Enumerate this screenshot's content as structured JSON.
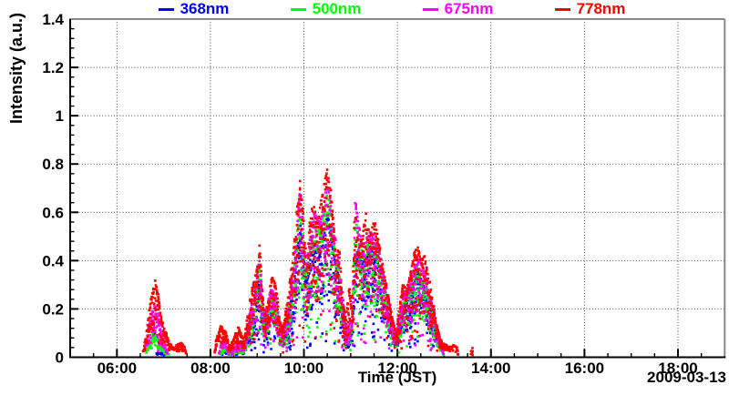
{
  "page": {
    "background": "#ffffff"
  },
  "legend": {
    "position": "top",
    "entries": [
      "368nm",
      "500nm",
      "675nm",
      "778nm"
    ]
  },
  "chart_data": {
    "type": "scatter",
    "title": "",
    "xlabel": "Time (JST)",
    "ylabel": "Intensity (a.u.)",
    "date": "2009-03-13",
    "xlim_hours": [
      5,
      19
    ],
    "ylim": [
      0,
      1.4
    ],
    "grid": "dotted",
    "legend_position": "top",
    "marker": "square",
    "marker_size_px": 3,
    "x_ticks": [
      {
        "hour": 6,
        "label": "06:00"
      },
      {
        "hour": 8,
        "label": "08:00"
      },
      {
        "hour": 10,
        "label": "10:00"
      },
      {
        "hour": 12,
        "label": "12:00"
      },
      {
        "hour": 14,
        "label": "14:00"
      },
      {
        "hour": 16,
        "label": "16:00"
      },
      {
        "hour": 18,
        "label": "18:00"
      }
    ],
    "x_minor_step_hours": 0.5,
    "y_ticks": [
      {
        "value": 1.4,
        "label": "1.4"
      },
      {
        "value": 1.2,
        "label": "1.2"
      },
      {
        "value": 1.0,
        "label": "1"
      },
      {
        "value": 0.8,
        "label": "0.8"
      },
      {
        "value": 0.6,
        "label": "0.6"
      },
      {
        "value": 0.4,
        "label": "0.4"
      },
      {
        "value": 0.2,
        "label": "0.2"
      },
      {
        "value": 0.0,
        "label": "0"
      }
    ],
    "y_minor_step": 0.04,
    "style": {
      "axis_color": "#000000",
      "frame_color": "#878787",
      "grid_color": "#3a3a3a",
      "background": "#ffffff"
    },
    "series": [
      {
        "name": "368nm",
        "color": "#0000ff",
        "envelope": [
          [
            6.84,
            0.018
          ],
          [
            7.06,
            0.018
          ],
          [
            7.1,
            0
          ],
          [
            8.22,
            0
          ],
          [
            8.26,
            0.025
          ],
          [
            8.42,
            0.025
          ],
          [
            8.46,
            0
          ],
          [
            8.6,
            0.03
          ],
          [
            8.72,
            0.03
          ],
          [
            8.8,
            0.1
          ],
          [
            8.95,
            0.2
          ],
          [
            9.05,
            0.32
          ],
          [
            9.15,
            0.12
          ],
          [
            9.3,
            0.28
          ],
          [
            9.4,
            0.22
          ],
          [
            9.5,
            0.1
          ],
          [
            9.62,
            0.11
          ],
          [
            9.78,
            0.3
          ],
          [
            9.92,
            0.55
          ],
          [
            10.05,
            0.3
          ],
          [
            10.2,
            0.48
          ],
          [
            10.35,
            0.45
          ],
          [
            10.52,
            0.6
          ],
          [
            10.62,
            0.45
          ],
          [
            10.75,
            0.32
          ],
          [
            10.9,
            0.08
          ],
          [
            11.03,
            0.11
          ],
          [
            11.1,
            0.48
          ],
          [
            11.25,
            0.38
          ],
          [
            11.4,
            0.45
          ],
          [
            11.55,
            0.42
          ],
          [
            11.7,
            0.3
          ],
          [
            11.85,
            0.16
          ],
          [
            11.97,
            0.06
          ],
          [
            12.12,
            0.22
          ],
          [
            12.28,
            0.26
          ],
          [
            12.42,
            0.35
          ],
          [
            12.58,
            0.3
          ],
          [
            12.72,
            0.2
          ],
          [
            12.85,
            0.1
          ],
          [
            12.95,
            0.04
          ],
          [
            13.0,
            0
          ]
        ]
      },
      {
        "name": "500nm",
        "color": "#00ff00",
        "envelope": [
          [
            6.62,
            0.02
          ],
          [
            6.7,
            0.06
          ],
          [
            6.78,
            0.1
          ],
          [
            6.86,
            0.09
          ],
          [
            6.94,
            0.05
          ],
          [
            7.02,
            0.03
          ],
          [
            7.1,
            0.02
          ],
          [
            7.14,
            0
          ],
          [
            8.2,
            0
          ],
          [
            8.26,
            0.04
          ],
          [
            8.36,
            0.04
          ],
          [
            8.44,
            0
          ],
          [
            8.58,
            0.04
          ],
          [
            8.72,
            0.04
          ],
          [
            8.8,
            0.12
          ],
          [
            8.95,
            0.25
          ],
          [
            9.05,
            0.38
          ],
          [
            9.15,
            0.15
          ],
          [
            9.3,
            0.25
          ],
          [
            9.4,
            0.23
          ],
          [
            9.5,
            0.11
          ],
          [
            9.62,
            0.13
          ],
          [
            9.78,
            0.36
          ],
          [
            9.92,
            0.65
          ],
          [
            10.05,
            0.35
          ],
          [
            10.2,
            0.55
          ],
          [
            10.35,
            0.52
          ],
          [
            10.52,
            0.7
          ],
          [
            10.62,
            0.5
          ],
          [
            10.75,
            0.36
          ],
          [
            10.9,
            0.1
          ],
          [
            11.03,
            0.13
          ],
          [
            11.1,
            0.58
          ],
          [
            11.25,
            0.42
          ],
          [
            11.4,
            0.48
          ],
          [
            11.55,
            0.46
          ],
          [
            11.7,
            0.32
          ],
          [
            11.85,
            0.18
          ],
          [
            11.97,
            0.07
          ],
          [
            12.12,
            0.24
          ],
          [
            12.28,
            0.28
          ],
          [
            12.42,
            0.38
          ],
          [
            12.58,
            0.33
          ],
          [
            12.72,
            0.22
          ],
          [
            12.85,
            0.1
          ],
          [
            12.95,
            0.04
          ],
          [
            13.0,
            0
          ]
        ]
      },
      {
        "name": "675nm",
        "color": "#ff00ff",
        "envelope": [
          [
            6.58,
            0.02
          ],
          [
            6.66,
            0.1
          ],
          [
            6.74,
            0.18
          ],
          [
            6.82,
            0.23
          ],
          [
            6.9,
            0.16
          ],
          [
            6.98,
            0.08
          ],
          [
            7.06,
            0.03
          ],
          [
            7.12,
            0
          ],
          [
            8.16,
            0
          ],
          [
            8.22,
            0.05
          ],
          [
            8.32,
            0.06
          ],
          [
            8.4,
            0
          ],
          [
            8.55,
            0.05
          ],
          [
            8.65,
            0.06
          ],
          [
            8.72,
            0.04
          ],
          [
            8.8,
            0.14
          ],
          [
            8.95,
            0.28
          ],
          [
            9.05,
            0.42
          ],
          [
            9.15,
            0.18
          ],
          [
            9.3,
            0.28
          ],
          [
            9.4,
            0.26
          ],
          [
            9.5,
            0.12
          ],
          [
            9.62,
            0.15
          ],
          [
            9.78,
            0.4
          ],
          [
            9.92,
            0.7
          ],
          [
            10.05,
            0.38
          ],
          [
            10.2,
            0.6
          ],
          [
            10.35,
            0.56
          ],
          [
            10.52,
            0.74
          ],
          [
            10.62,
            0.55
          ],
          [
            10.75,
            0.4
          ],
          [
            10.9,
            0.12
          ],
          [
            11.03,
            0.15
          ],
          [
            11.1,
            0.65
          ],
          [
            11.25,
            0.45
          ],
          [
            11.4,
            0.52
          ],
          [
            11.55,
            0.5
          ],
          [
            11.7,
            0.35
          ],
          [
            11.85,
            0.2
          ],
          [
            11.97,
            0.08
          ],
          [
            12.12,
            0.26
          ],
          [
            12.28,
            0.3
          ],
          [
            12.42,
            0.42
          ],
          [
            12.58,
            0.36
          ],
          [
            12.72,
            0.24
          ],
          [
            12.85,
            0.12
          ],
          [
            12.95,
            0.05
          ],
          [
            13.0,
            0
          ]
        ]
      },
      {
        "name": "778nm",
        "color": "#ff0000",
        "envelope": [
          [
            6.55,
            0.02
          ],
          [
            6.62,
            0.08
          ],
          [
            6.68,
            0.18
          ],
          [
            6.75,
            0.26
          ],
          [
            6.82,
            0.32
          ],
          [
            6.88,
            0.26
          ],
          [
            6.95,
            0.16
          ],
          [
            7.02,
            0.12
          ],
          [
            7.1,
            0.07
          ],
          [
            7.18,
            0.04
          ],
          [
            7.28,
            0.05
          ],
          [
            7.38,
            0.06
          ],
          [
            7.45,
            0.04
          ],
          [
            7.5,
            0
          ],
          [
            8.08,
            0
          ],
          [
            8.12,
            0.07
          ],
          [
            8.22,
            0.13
          ],
          [
            8.32,
            0.11
          ],
          [
            8.4,
            0.05
          ],
          [
            8.5,
            0.07
          ],
          [
            8.58,
            0.13
          ],
          [
            8.65,
            0.1
          ],
          [
            8.72,
            0.06
          ],
          [
            8.8,
            0.18
          ],
          [
            8.88,
            0.28
          ],
          [
            8.95,
            0.32
          ],
          [
            9.0,
            0.38
          ],
          [
            9.05,
            0.47
          ],
          [
            9.12,
            0.25
          ],
          [
            9.18,
            0.14
          ],
          [
            9.25,
            0.28
          ],
          [
            9.32,
            0.33
          ],
          [
            9.4,
            0.3
          ],
          [
            9.48,
            0.15
          ],
          [
            9.55,
            0.12
          ],
          [
            9.62,
            0.2
          ],
          [
            9.7,
            0.32
          ],
          [
            9.78,
            0.45
          ],
          [
            9.85,
            0.6
          ],
          [
            9.92,
            0.75
          ],
          [
            9.98,
            0.6
          ],
          [
            10.05,
            0.42
          ],
          [
            10.12,
            0.55
          ],
          [
            10.2,
            0.65
          ],
          [
            10.28,
            0.55
          ],
          [
            10.35,
            0.62
          ],
          [
            10.45,
            0.75
          ],
          [
            10.52,
            0.79
          ],
          [
            10.6,
            0.65
          ],
          [
            10.68,
            0.4
          ],
          [
            10.75,
            0.46
          ],
          [
            10.82,
            0.25
          ],
          [
            10.9,
            0.15
          ],
          [
            10.97,
            0.3
          ],
          [
            11.03,
            0.2
          ],
          [
            11.1,
            0.69
          ],
          [
            11.17,
            0.45
          ],
          [
            11.25,
            0.5
          ],
          [
            11.33,
            0.6
          ],
          [
            11.42,
            0.5
          ],
          [
            11.5,
            0.58
          ],
          [
            11.58,
            0.5
          ],
          [
            11.65,
            0.42
          ],
          [
            11.73,
            0.33
          ],
          [
            11.82,
            0.25
          ],
          [
            11.9,
            0.15
          ],
          [
            11.97,
            0.1
          ],
          [
            12.05,
            0.22
          ],
          [
            12.12,
            0.3
          ],
          [
            12.2,
            0.28
          ],
          [
            12.28,
            0.35
          ],
          [
            12.35,
            0.42
          ],
          [
            12.42,
            0.47
          ],
          [
            12.5,
            0.4
          ],
          [
            12.58,
            0.42
          ],
          [
            12.65,
            0.35
          ],
          [
            12.72,
            0.28
          ],
          [
            12.8,
            0.18
          ],
          [
            12.88,
            0.1
          ],
          [
            12.95,
            0.06
          ],
          [
            13.05,
            0.05
          ],
          [
            13.12,
            0.04
          ],
          [
            13.2,
            0.05
          ],
          [
            13.28,
            0.04
          ],
          [
            13.32,
            0
          ],
          [
            13.55,
            0
          ],
          [
            13.6,
            0.04
          ],
          [
            13.63,
            0
          ]
        ]
      }
    ],
    "draw_order": [
      "368nm",
      "500nm",
      "675nm",
      "778nm"
    ]
  }
}
